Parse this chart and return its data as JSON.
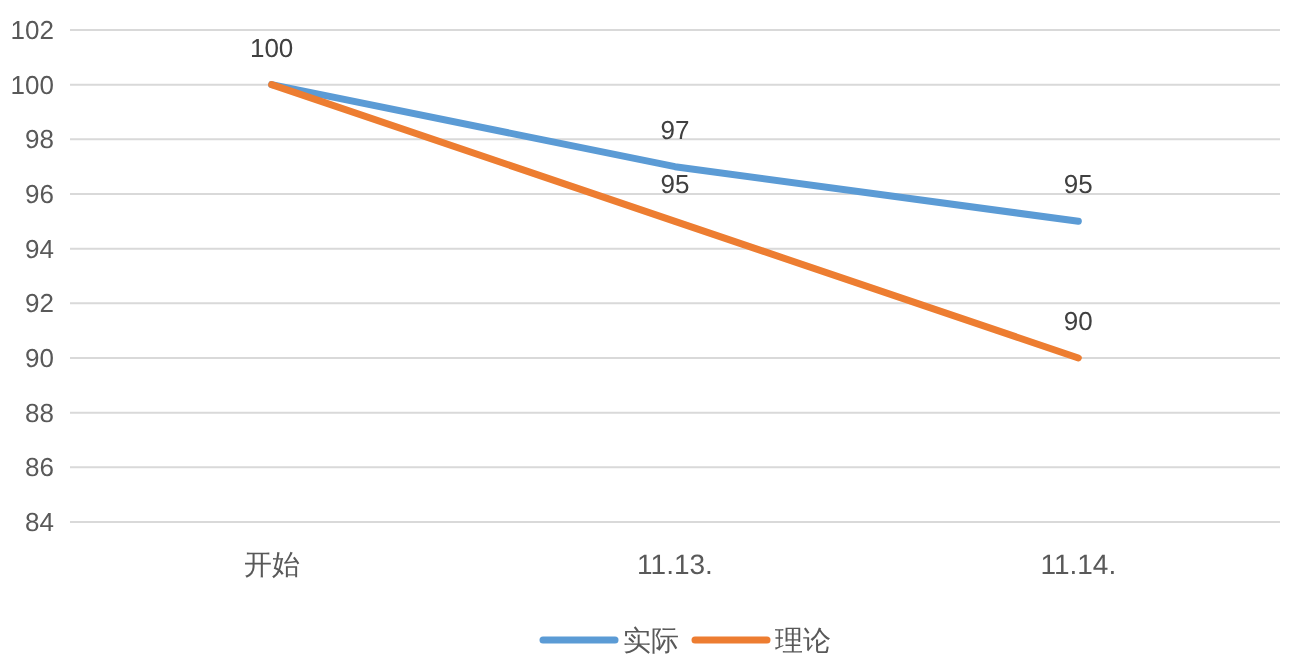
{
  "chart_data": {
    "type": "line",
    "categories": [
      "开始",
      "11.13.",
      "11.14."
    ],
    "series": [
      {
        "name": "实际",
        "color": "#5b9bd5",
        "values": [
          100,
          97,
          95
        ],
        "value_labels": [
          "100",
          "97",
          "95"
        ]
      },
      {
        "name": "理论",
        "color": "#ed7d31",
        "values": [
          100,
          95,
          90
        ],
        "value_labels": [
          null,
          "95",
          "90"
        ]
      }
    ],
    "ylim": [
      84,
      102
    ],
    "yticks": [
      84,
      86,
      88,
      90,
      92,
      94,
      96,
      98,
      100,
      102
    ],
    "grid": "y",
    "legend": "bottom",
    "marker": "none",
    "line_style": "solid"
  }
}
